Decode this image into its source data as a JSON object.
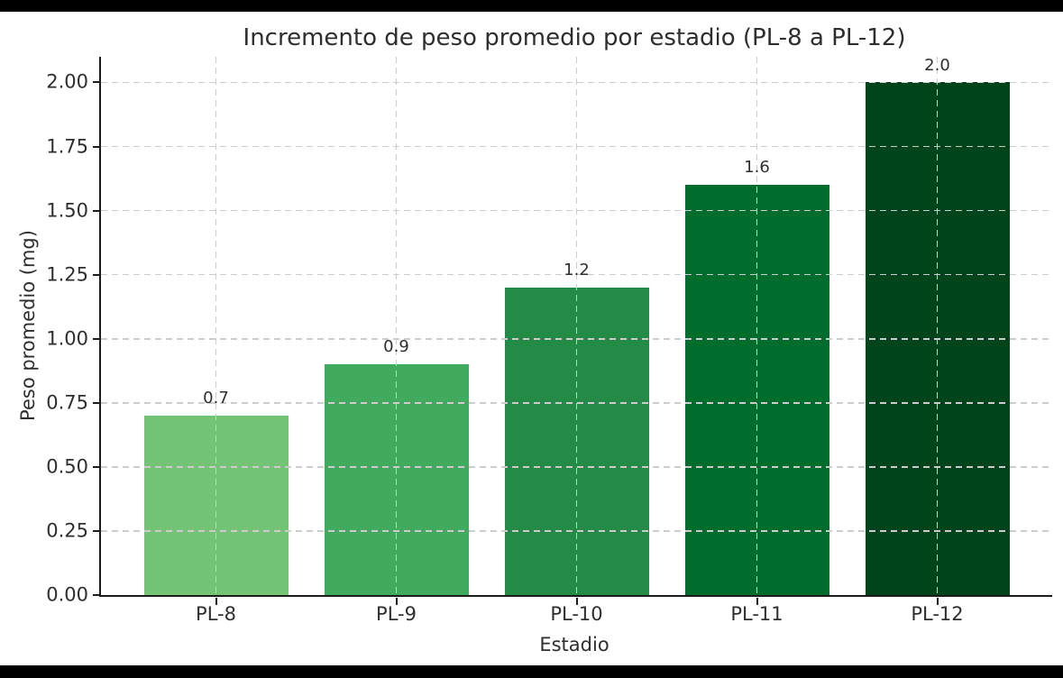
{
  "figure": {
    "background": "#ffffff",
    "letterbox_color": "#000000",
    "text_color": "#2e2e2e",
    "spine_color": "#1c1c1c",
    "grid_color": "#cccccc"
  },
  "chart_data": {
    "type": "bar",
    "title": "Incremento de peso promedio por estadio (PL-8 a PL-12)",
    "xlabel": "Estadio",
    "ylabel": "Peso promedio (mg)",
    "categories": [
      "PL-8",
      "PL-9",
      "PL-10",
      "PL-11",
      "PL-12"
    ],
    "values": [
      0.7,
      0.9,
      1.2,
      1.6,
      2.0
    ],
    "bar_labels": [
      "0.7",
      "0.9",
      "1.2",
      "1.6",
      "2.0"
    ],
    "bar_colors": [
      "#74c476",
      "#41ab5d",
      "#238b45",
      "#006d2c",
      "#00441b"
    ],
    "ylim": [
      0,
      2.1
    ],
    "yticks": [
      0,
      0.25,
      0.5,
      0.75,
      1.0,
      1.25,
      1.5,
      1.75,
      2.0
    ],
    "ytick_labels": [
      "0.00",
      "0.25",
      "0.50",
      "0.75",
      "1.00",
      "1.25",
      "1.50",
      "1.75",
      "2.00"
    ],
    "grid": {
      "visible": true,
      "style": "dashed",
      "horizontal": true,
      "vertical": true,
      "drawn_above_bars": true
    },
    "legend": null
  }
}
